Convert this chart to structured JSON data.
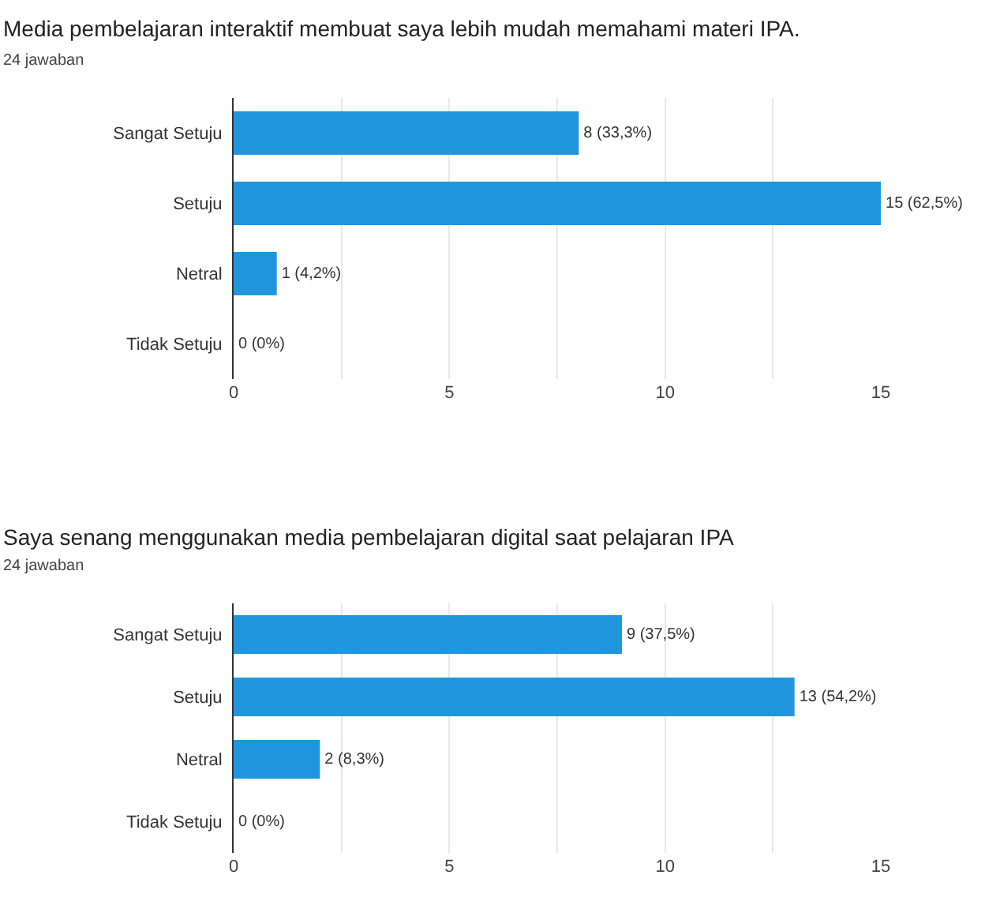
{
  "chart_data": [
    {
      "type": "bar",
      "orientation": "horizontal",
      "title": "Media pembelajaran interaktif membuat saya lebih mudah memahami materi IPA.",
      "subtitle": "24 jawaban",
      "categories": [
        "Sangat Setuju",
        "Setuju",
        "Netral",
        "Tidak Setuju"
      ],
      "values": [
        8,
        15,
        1,
        0
      ],
      "color": "#2196de",
      "value_labels": [
        "8 (33,3%)",
        "15 (62,5%)",
        "1 (4,2%)",
        "0 (0%)"
      ],
      "xlim": [
        0,
        15
      ],
      "xticks": [
        0,
        {
          "value": 2.5,
          "label": null
        },
        5,
        {
          "value": 7.5,
          "label": null
        },
        10,
        {
          "value": 12.5,
          "label": null
        },
        15
      ],
      "grid": "x"
    },
    {
      "type": "bar",
      "orientation": "horizontal",
      "title": "Saya senang menggunakan media pembelajaran digital saat pelajaran IPA",
      "subtitle": "24 jawaban",
      "categories": [
        "Sangat Setuju",
        "Setuju",
        "Netral",
        "Tidak Setuju"
      ],
      "values": [
        9,
        13,
        2,
        0
      ],
      "color": "#2196de",
      "value_labels": [
        "9 (37,5%)",
        "13 (54,2%)",
        "2 (8,3%)",
        "0 (0%)"
      ],
      "xlim": [
        0,
        15
      ],
      "xticks": [
        0,
        {
          "value": 2.5,
          "label": null
        },
        5,
        {
          "value": 7.5,
          "label": null
        },
        10,
        {
          "value": 12.5,
          "label": null
        },
        15
      ],
      "grid": "x"
    }
  ]
}
